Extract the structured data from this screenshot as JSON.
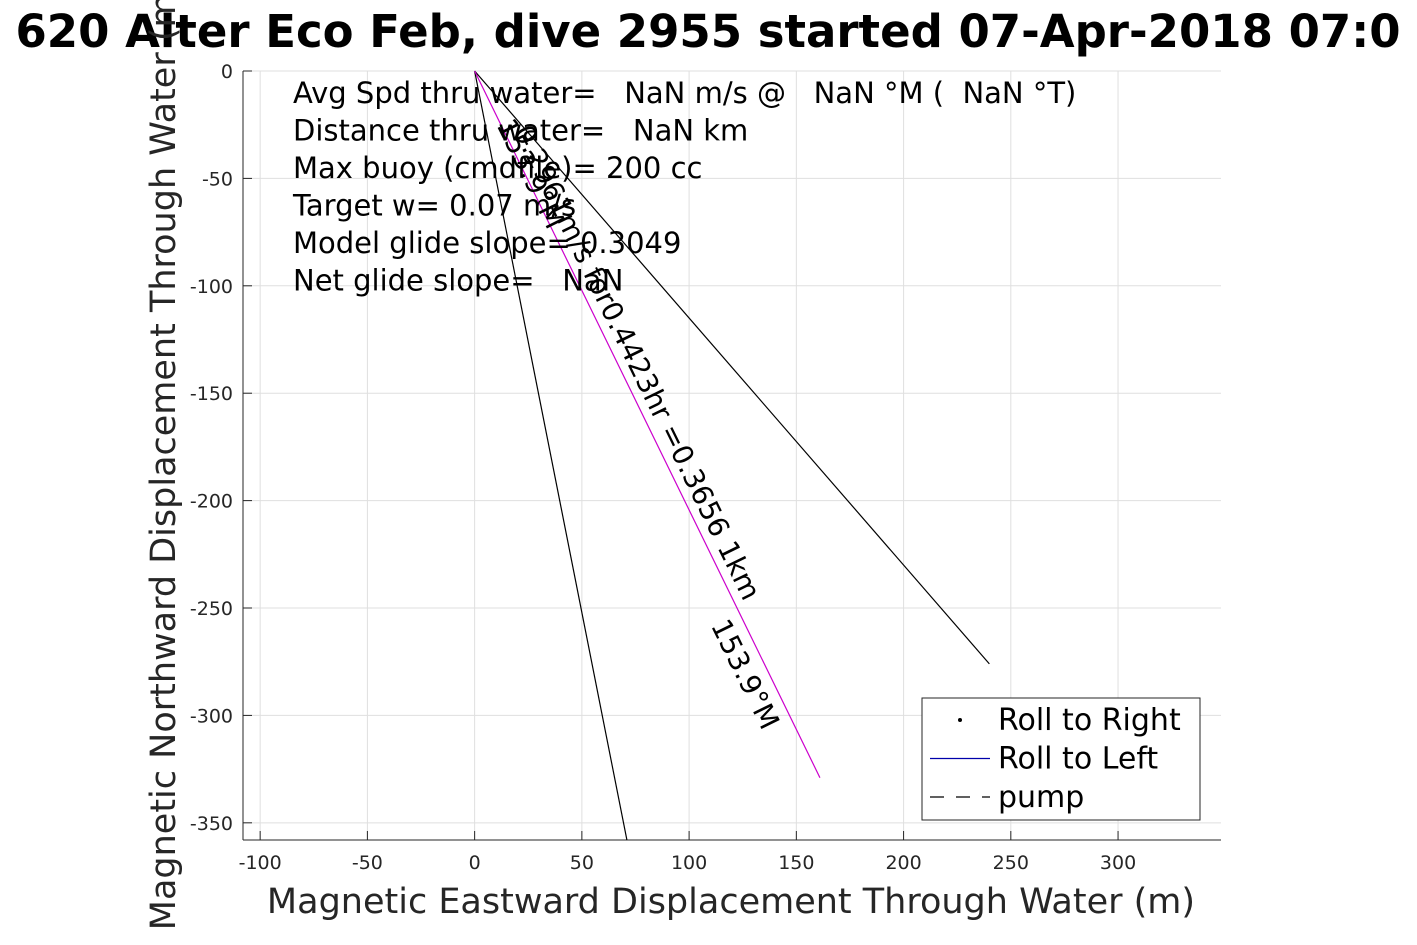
{
  "chart_data": {
    "type": "line",
    "title": "620 Alter Eco Feb, dive 2955 started 07-Apr-2018 07:0",
    "xlabel": "Magnetic Eastward Displacement Through Water (m)",
    "ylabel": "Magnetic Northward Displacement Through Water (m)",
    "xlim": [
      -108,
      348
    ],
    "ylim": [
      -358,
      0
    ],
    "xticks": [
      -100,
      -50,
      0,
      50,
      100,
      150,
      200,
      250,
      300
    ],
    "yticks": [
      0,
      -50,
      -100,
      -150,
      -200,
      -250,
      -300,
      -350
    ],
    "xtick_labels": [
      "-100",
      "-50",
      "0",
      "50",
      "100",
      "150",
      "200",
      "250",
      "300"
    ],
    "ytick_labels": [
      "0",
      "-50",
      "-100",
      "-150",
      "-200",
      "-250",
      "-300",
      "-350"
    ],
    "grid": true,
    "legend_position": "bottom-right",
    "legend": [
      {
        "label": "Roll to Right",
        "style": "dot",
        "color": "#000000"
      },
      {
        "label": "Roll to Left",
        "style": "solid",
        "color": "#0000aa"
      },
      {
        "label": "pump",
        "style": "dashed",
        "color": "#000000"
      }
    ],
    "stats": [
      "Avg Spd thru water=   NaN m/s @   NaN °M (  NaN °T)",
      "Distance thru water=   NaN km",
      "Max buoy (cmdfile)= 200 cc",
      "Target w= 0.07 m/s",
      "Model glide slope= 0.3049",
      "Net glide slope=   NaN"
    ],
    "series": [
      {
        "style": "solid",
        "color": "#000000",
        "x": [
          0,
          240
        ],
        "y": [
          0,
          -276
        ]
      },
      {
        "style": "solid",
        "color": "#000000",
        "x": [
          0,
          71
        ],
        "y": [
          0,
          -358
        ]
      },
      {
        "style": "solid",
        "color": "#cc00cc",
        "x": [
          0,
          161
        ],
        "y": [
          0,
          -329
        ]
      }
    ],
    "annotations": [
      {
        "text": "0.2961m/s for0.4423hr =0.3656 1km",
        "x": 18,
        "y": -28,
        "angle": 63.9
      },
      {
        "text": "153.9°M",
        "x": 10,
        "y": -25,
        "angle": 63.9
      },
      {
        "text": "153.9°M",
        "x": 110,
        "y": -258,
        "angle": 63.9
      }
    ]
  }
}
